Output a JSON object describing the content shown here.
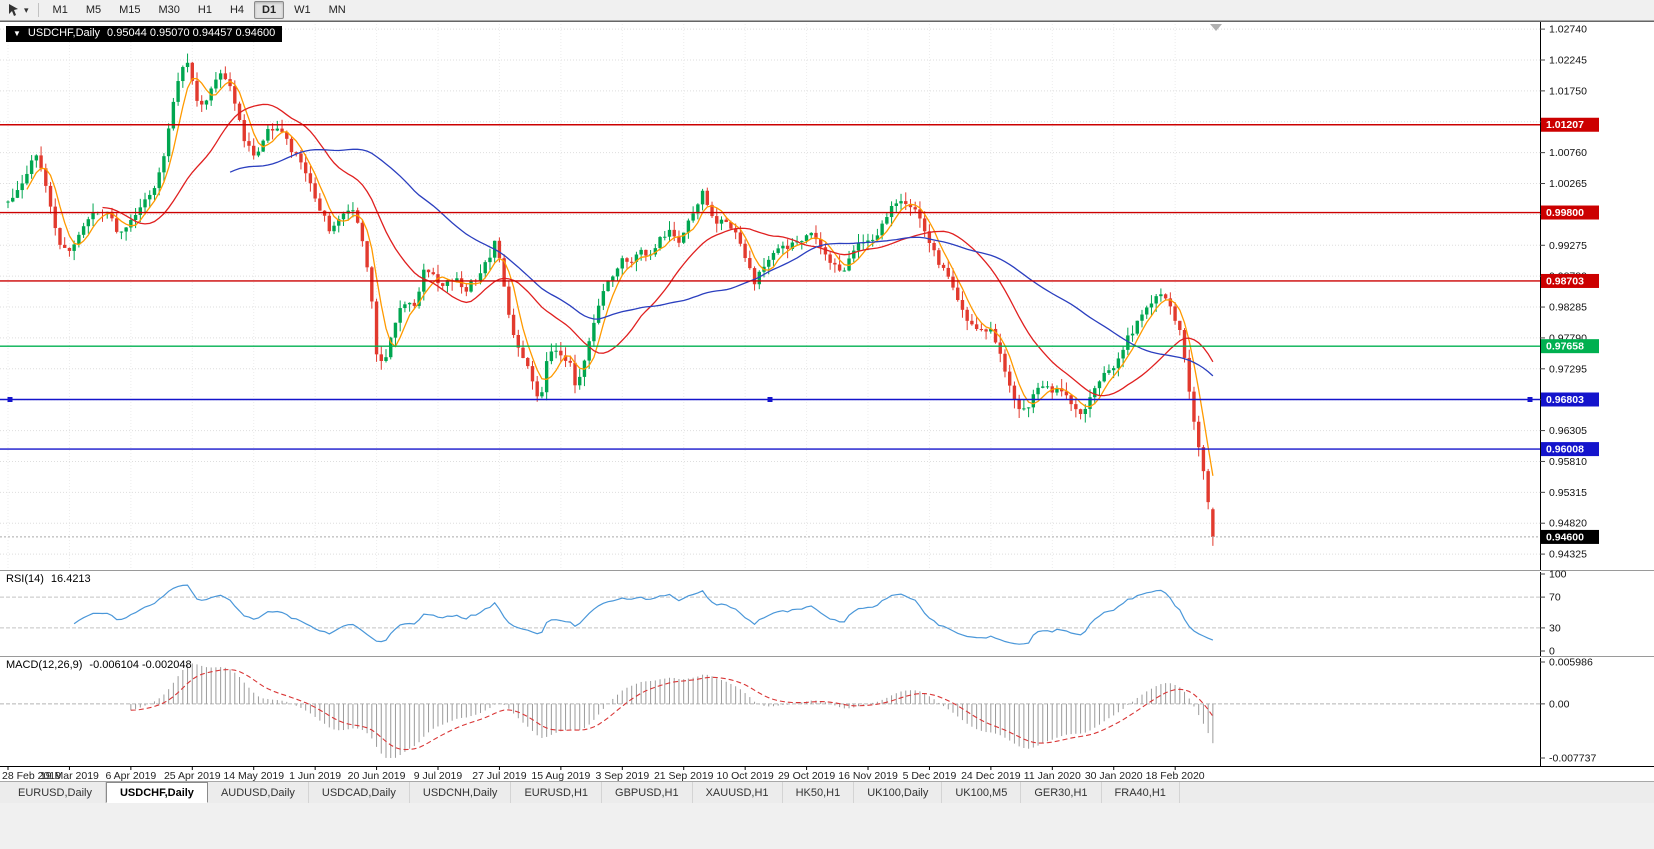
{
  "toolbar": {
    "timeframes": [
      "M1",
      "M5",
      "M15",
      "M30",
      "H1",
      "H4",
      "D1",
      "W1",
      "MN"
    ],
    "active": "D1"
  },
  "icons": {
    "one_click": "▼",
    "dropdown": "▾"
  },
  "header": {
    "symbol_period": "USDCHF,Daily",
    "ohlc": "0.95044 0.95070 0.94457 0.94600"
  },
  "rsi": {
    "label": "RSI(14)",
    "value": "16.4213",
    "period": 14,
    "color": "#4a97d9",
    "levels": [
      70,
      30
    ],
    "axis_labels": [
      "100",
      "70",
      "30",
      "0"
    ]
  },
  "macd": {
    "label": "MACD(12,26,9)",
    "values": "-0.006104 -0.002048",
    "fast": 12,
    "slow": 26,
    "signal": 9,
    "hist_color": "#9b9b9b",
    "signal_color": "#d93636",
    "range": [
      -0.007737,
      0.005986
    ],
    "axis_labels": [
      "0.005986",
      "0.00",
      "-0.007737"
    ]
  },
  "tabs": [
    {
      "label": "EURUSD,Daily",
      "active": false
    },
    {
      "label": "USDCHF,Daily",
      "active": true
    },
    {
      "label": "AUDUSD,Daily",
      "active": false
    },
    {
      "label": "USDCAD,Daily",
      "active": false
    },
    {
      "label": "USDCNH,Daily",
      "active": false
    },
    {
      "label": "EURUSD,H1",
      "active": false
    },
    {
      "label": "GBPUSD,H1",
      "active": false
    },
    {
      "label": "XAUUSD,H1",
      "active": false
    },
    {
      "label": "HK50,H1",
      "active": false
    },
    {
      "label": "UK100,Daily",
      "active": false
    },
    {
      "label": "UK100,M5",
      "active": false
    },
    {
      "label": "GER30,H1",
      "active": false
    },
    {
      "label": "FRA40,H1",
      "active": false
    }
  ],
  "chart_data": {
    "type": "candlestick",
    "symbol": "USDCHF",
    "period": "Daily",
    "current_bar": {
      "open": 0.95044,
      "high": 0.9507,
      "low": 0.94457,
      "close": 0.946
    },
    "price_range": {
      "top": 1.0287,
      "bottom": 0.9407
    },
    "y_ticks": [
      "1.02740",
      "1.02245",
      "1.01750",
      "1.01255",
      "1.00760",
      "1.00265",
      "0.99770",
      "0.99275",
      "0.98780",
      "0.98285",
      "0.97790",
      "0.97295",
      "0.96800",
      "0.96305",
      "0.95810",
      "0.95315",
      "0.94820",
      "0.94325"
    ],
    "x_ticks": [
      "28 Feb 2019",
      "19 Mar 2019",
      "6 Apr 2019",
      "25 Apr 2019",
      "14 May 2019",
      "1 Jun 2019",
      "20 Jun 2019",
      "9 Jul 2019",
      "27 Jul 2019",
      "15 Aug 2019",
      "3 Sep 2019",
      "21 Sep 2019",
      "10 Oct 2019",
      "29 Oct 2019",
      "16 Nov 2019",
      "5 Dec 2019",
      "24 Dec 2019",
      "11 Jan 2020",
      "30 Jan 2020",
      "18 Feb 2020"
    ],
    "horizontal_lines": [
      {
        "price": 1.01207,
        "label": "1.01207",
        "color": "#cc0000",
        "selected": false
      },
      {
        "price": 0.998,
        "label": "0.99800",
        "color": "#cc0000",
        "selected": false
      },
      {
        "price": 0.98703,
        "label": "0.98703",
        "color": "#cc0000",
        "selected": false
      },
      {
        "price": 0.97658,
        "label": "0.97658",
        "color": "#00b050",
        "selected": false
      },
      {
        "price": 0.96803,
        "label": "0.96803",
        "color": "#1414cc",
        "selected": true
      },
      {
        "price": 0.96008,
        "label": "0.96008",
        "color": "#1414cc",
        "selected": false
      }
    ],
    "current_price_line": {
      "price": 0.946,
      "label": "0.94600",
      "badge_color": "#000000"
    },
    "moving_averages": [
      {
        "period": 5,
        "color": "#ff9a00"
      },
      {
        "period": 21,
        "color": "#e02020"
      },
      {
        "period": 48,
        "color": "#2b3fbf"
      }
    ],
    "candle_up_color": "#00a650",
    "candle_down_color": "#e23a2e",
    "close_path_anchors": [
      [
        8,
        1.0
      ],
      [
        16,
        1.0015
      ],
      [
        24,
        1.0035
      ],
      [
        32,
        1.006
      ],
      [
        38,
        1.0082
      ],
      [
        44,
        1.003
      ],
      [
        52,
        0.9975
      ],
      [
        60,
        0.993
      ],
      [
        68,
        0.991
      ],
      [
        76,
        0.993
      ],
      [
        84,
        0.996
      ],
      [
        92,
        0.9985
      ],
      [
        100,
        0.9975
      ],
      [
        108,
        0.9985
      ],
      [
        116,
        0.9955
      ],
      [
        124,
        0.9945
      ],
      [
        132,
        0.997
      ],
      [
        140,
        0.999
      ],
      [
        148,
        1.0
      ],
      [
        156,
        1.002
      ],
      [
        164,
        1.0075
      ],
      [
        172,
        1.015
      ],
      [
        180,
        1.0205
      ],
      [
        188,
        1.022
      ],
      [
        196,
        1.0165
      ],
      [
        204,
        1.0148
      ],
      [
        212,
        1.018
      ],
      [
        220,
        1.0205
      ],
      [
        228,
        1.0195
      ],
      [
        236,
        1.015
      ],
      [
        244,
        1.01
      ],
      [
        252,
        1.0072
      ],
      [
        260,
        1.0085
      ],
      [
        268,
        1.011
      ],
      [
        276,
        1.0118
      ],
      [
        284,
        1.0108
      ],
      [
        292,
        1.0078
      ],
      [
        300,
        1.0062
      ],
      [
        310,
        1.0025
      ],
      [
        320,
        0.9985
      ],
      [
        330,
        0.9952
      ],
      [
        340,
        0.997
      ],
      [
        350,
        0.9988
      ],
      [
        358,
        0.9968
      ],
      [
        366,
        0.9905
      ],
      [
        372,
        0.983
      ],
      [
        378,
        0.973
      ],
      [
        384,
        0.9742
      ],
      [
        392,
        0.9782
      ],
      [
        400,
        0.9825
      ],
      [
        408,
        0.984
      ],
      [
        416,
        0.9832
      ],
      [
        424,
        0.9895
      ],
      [
        432,
        0.988
      ],
      [
        440,
        0.9862
      ],
      [
        448,
        0.987
      ],
      [
        456,
        0.9876
      ],
      [
        464,
        0.9852
      ],
      [
        472,
        0.9868
      ],
      [
        480,
        0.9884
      ],
      [
        488,
        0.9902
      ],
      [
        495,
        0.9932
      ],
      [
        502,
        0.9886
      ],
      [
        510,
        0.9806
      ],
      [
        518,
        0.9768
      ],
      [
        526,
        0.9738
      ],
      [
        534,
        0.97
      ],
      [
        540,
        0.9672
      ],
      [
        546,
        0.9742
      ],
      [
        554,
        0.9768
      ],
      [
        562,
        0.9752
      ],
      [
        570,
        0.9742
      ],
      [
        576,
        0.9692
      ],
      [
        584,
        0.9744
      ],
      [
        592,
        0.9788
      ],
      [
        600,
        0.9836
      ],
      [
        608,
        0.9868
      ],
      [
        616,
        0.9888
      ],
      [
        624,
        0.9906
      ],
      [
        632,
        0.9896
      ],
      [
        640,
        0.9922
      ],
      [
        648,
        0.9908
      ],
      [
        656,
        0.993
      ],
      [
        664,
        0.9944
      ],
      [
        672,
        0.995
      ],
      [
        680,
        0.9934
      ],
      [
        688,
        0.9962
      ],
      [
        696,
        0.9988
      ],
      [
        702,
        1.0012
      ],
      [
        708,
        0.9992
      ],
      [
        714,
        0.9964
      ],
      [
        722,
        0.9972
      ],
      [
        730,
        0.9958
      ],
      [
        738,
        0.9946
      ],
      [
        746,
        0.9906
      ],
      [
        754,
        0.9868
      ],
      [
        762,
        0.9886
      ],
      [
        770,
        0.9914
      ],
      [
        778,
        0.9926
      ],
      [
        786,
        0.992
      ],
      [
        794,
        0.993
      ],
      [
        802,
        0.9938
      ],
      [
        810,
        0.995
      ],
      [
        818,
        0.9932
      ],
      [
        826,
        0.9912
      ],
      [
        834,
        0.9896
      ],
      [
        842,
        0.9886
      ],
      [
        850,
        0.9906
      ],
      [
        858,
        0.9926
      ],
      [
        866,
        0.9932
      ],
      [
        874,
        0.9938
      ],
      [
        882,
        0.9958
      ],
      [
        890,
        0.9986
      ],
      [
        898,
        1.0002
      ],
      [
        906,
        0.9988
      ],
      [
        914,
        0.9992
      ],
      [
        922,
        0.9966
      ],
      [
        930,
        0.993
      ],
      [
        938,
        0.9902
      ],
      [
        946,
        0.9886
      ],
      [
        954,
        0.9856
      ],
      [
        962,
        0.9824
      ],
      [
        970,
        0.9802
      ],
      [
        978,
        0.9796
      ],
      [
        986,
        0.9794
      ],
      [
        994,
        0.9784
      ],
      [
        1002,
        0.9744
      ],
      [
        1010,
        0.9706
      ],
      [
        1018,
        0.9668
      ],
      [
        1026,
        0.9658
      ],
      [
        1034,
        0.9692
      ],
      [
        1042,
        0.9706
      ],
      [
        1050,
        0.9692
      ],
      [
        1058,
        0.9702
      ],
      [
        1066,
        0.9694
      ],
      [
        1074,
        0.9664
      ],
      [
        1082,
        0.9652
      ],
      [
        1090,
        0.9684
      ],
      [
        1098,
        0.9706
      ],
      [
        1106,
        0.9722
      ],
      [
        1114,
        0.9734
      ],
      [
        1122,
        0.9762
      ],
      [
        1130,
        0.9784
      ],
      [
        1138,
        0.9804
      ],
      [
        1146,
        0.9824
      ],
      [
        1154,
        0.9842
      ],
      [
        1161,
        0.9848
      ],
      [
        1168,
        0.9832
      ],
      [
        1175,
        0.9812
      ],
      [
        1182,
        0.9778
      ],
      [
        1188,
        0.9706
      ],
      [
        1194,
        0.964
      ],
      [
        1200,
        0.9592
      ],
      [
        1206,
        0.9536
      ],
      [
        1210,
        0.9502
      ],
      [
        1213,
        0.946
      ]
    ]
  }
}
